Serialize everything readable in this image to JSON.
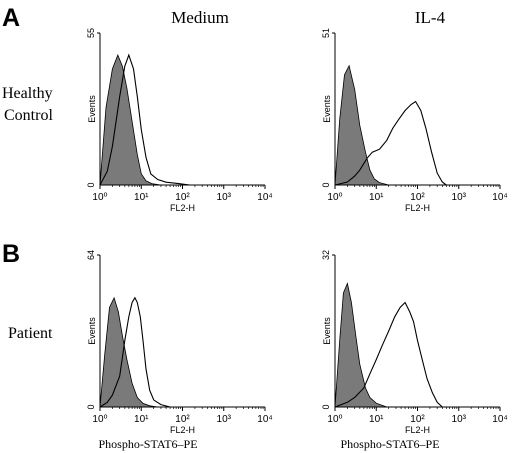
{
  "panel_letters": [
    "A",
    "B"
  ],
  "column_titles": [
    "Medium",
    "IL-4"
  ],
  "row_labels": [
    [
      "Healthy",
      "Control"
    ],
    [
      "Patient"
    ]
  ],
  "xaxis_title": "Phospho-STAT6–PE",
  "chart_data": [
    {
      "type": "area",
      "panel": "A",
      "row": "Healthy Control",
      "column": "Medium",
      "xscale": "log",
      "xlim": [
        1,
        10000
      ],
      "ylim": [
        0,
        55
      ],
      "ymax_label": "55",
      "ylabel": "Events",
      "xlabel": "FL2-H",
      "x_ticks": [
        "10⁰",
        "10¹",
        "10²",
        "10³",
        "10⁴"
      ],
      "filled": {
        "x": [
          1,
          1.4,
          2,
          2.7,
          3.5,
          4.5,
          6,
          8,
          10,
          13,
          18,
          30
        ],
        "y": [
          0,
          28,
          42,
          47,
          43,
          35,
          23,
          11,
          4,
          1.5,
          0.5,
          0
        ]
      },
      "open": {
        "x": [
          1,
          1.5,
          2,
          3,
          4,
          5,
          6.5,
          8,
          10,
          13,
          17,
          25,
          40,
          80,
          150
        ],
        "y": [
          0,
          5,
          14,
          32,
          43,
          47,
          42,
          32,
          20,
          10,
          4,
          2,
          1,
          0.5,
          0
        ]
      }
    },
    {
      "type": "area",
      "panel": "A",
      "row": "Healthy Control",
      "column": "IL-4",
      "xscale": "log",
      "xlim": [
        1,
        10000
      ],
      "ylim": [
        0,
        51
      ],
      "ymax_label": "51",
      "ylabel": "Events",
      "xlabel": "FL2-H",
      "x_ticks": [
        "10⁰",
        "10¹",
        "10²",
        "10³",
        "10⁴"
      ],
      "filled": {
        "x": [
          1,
          1.3,
          1.7,
          2.2,
          3,
          4,
          5.5,
          7,
          9,
          12,
          20
        ],
        "y": [
          0,
          22,
          37,
          40,
          32,
          20,
          11,
          5,
          2,
          0.8,
          0
        ]
      },
      "open": {
        "x": [
          1,
          2,
          3,
          4,
          6,
          8,
          12,
          18,
          25,
          35,
          50,
          70,
          90,
          120,
          160,
          220,
          300,
          400,
          500
        ],
        "y": [
          0,
          1,
          3,
          5,
          9,
          11,
          12,
          15,
          19,
          22,
          25,
          27,
          28,
          25,
          19,
          11,
          4,
          1,
          0
        ]
      }
    },
    {
      "type": "area",
      "panel": "B",
      "row": "Patient",
      "column": "Medium",
      "xscale": "log",
      "xlim": [
        1,
        10000
      ],
      "ylim": [
        0,
        64
      ],
      "ymax_label": "64",
      "ylabel": "Events",
      "xlabel": "FL2-H",
      "x_ticks": [
        "10⁰",
        "10¹",
        "10²",
        "10³",
        "10⁴"
      ],
      "filled": {
        "x": [
          1,
          1.3,
          1.7,
          2.2,
          2.8,
          3.5,
          4.5,
          6,
          8,
          11,
          16,
          25
        ],
        "y": [
          0,
          22,
          42,
          46,
          40,
          30,
          20,
          10,
          4,
          1.5,
          0.5,
          0
        ]
      },
      "open": {
        "x": [
          1,
          1.5,
          2,
          3,
          4,
          5,
          6,
          7,
          8,
          9.5,
          11,
          13,
          16,
          20,
          30,
          50
        ],
        "y": [
          0,
          2,
          5,
          13,
          28,
          38,
          44,
          46,
          44,
          38,
          28,
          16,
          7,
          3,
          1,
          0
        ]
      }
    },
    {
      "type": "area",
      "panel": "B",
      "row": "Patient",
      "column": "IL-4",
      "xscale": "log",
      "xlim": [
        1,
        10000
      ],
      "ylim": [
        0,
        32
      ],
      "ymax_label": "32",
      "ylabel": "Events",
      "xlabel": "FL2-H",
      "x_ticks": [
        "10⁰",
        "10¹",
        "10²",
        "10³",
        "10⁴"
      ],
      "filled": {
        "x": [
          1,
          1.3,
          1.6,
          2,
          2.5,
          3.2,
          4,
          5.5,
          7,
          10,
          18
        ],
        "y": [
          0,
          14,
          24,
          26,
          22,
          15,
          9,
          4,
          2,
          0.8,
          0
        ]
      },
      "open": {
        "x": [
          1,
          2,
          3,
          5,
          7,
          10,
          14,
          20,
          28,
          38,
          50,
          65,
          80,
          100,
          130,
          170,
          230,
          300,
          400
        ],
        "y": [
          0,
          1,
          2,
          4,
          7,
          10,
          13,
          16,
          19,
          21,
          22,
          20,
          18,
          14,
          10,
          6,
          3,
          1,
          0
        ]
      }
    }
  ]
}
